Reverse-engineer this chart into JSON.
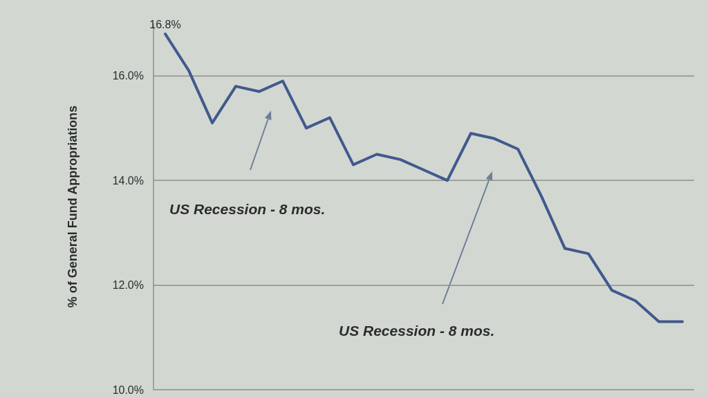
{
  "chart_data": {
    "type": "line",
    "ylabel": "% of General Fund Appropriations",
    "categories": [
      null,
      null,
      null,
      null,
      null,
      null,
      null,
      null,
      null,
      null,
      null,
      null,
      null,
      null,
      null,
      null,
      null,
      null,
      null,
      null,
      null,
      null,
      null
    ],
    "values": [
      16.8,
      16.1,
      15.1,
      15.8,
      15.7,
      15.9,
      15.0,
      15.2,
      14.3,
      14.5,
      14.4,
      14.2,
      14.0,
      14.9,
      14.8,
      14.6,
      13.7,
      12.7,
      12.6,
      11.9,
      11.7,
      11.3,
      11.3
    ],
    "value_labels": [
      "16.8%",
      null,
      null,
      null,
      null,
      null,
      null,
      null,
      null,
      null,
      null,
      null,
      null,
      null,
      null,
      null,
      null,
      null,
      null,
      null,
      null,
      null,
      null
    ],
    "color": "#42598e",
    "ylim": [
      10,
      17
    ],
    "yticks": [
      {
        "value": 10,
        "label": "10.0%"
      },
      {
        "value": 12,
        "label": "12.0%"
      },
      {
        "value": 14,
        "label": "14.0%"
      },
      {
        "value": 16,
        "label": "16.0%"
      }
    ],
    "grid": "y",
    "tick_labels": "y",
    "marker": "none",
    "line_style": "solid",
    "annotations": [
      "US Recession - 8 mos.",
      "US Recession - 8 mos."
    ]
  }
}
